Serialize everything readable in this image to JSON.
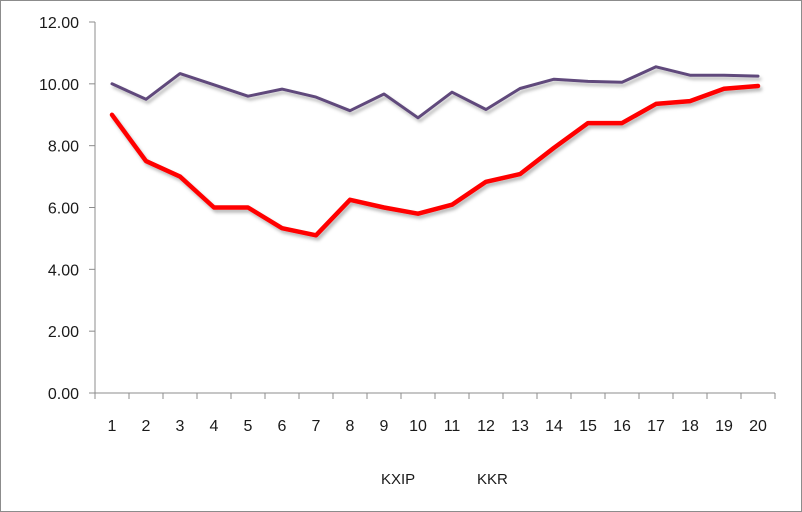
{
  "chart_data": {
    "type": "line",
    "title": "",
    "xlabel": "",
    "ylabel": "",
    "categories": [
      "1",
      "2",
      "3",
      "4",
      "5",
      "6",
      "7",
      "8",
      "9",
      "10",
      "11",
      "12",
      "13",
      "14",
      "15",
      "16",
      "17",
      "18",
      "19",
      "20"
    ],
    "ylim": [
      0,
      12
    ],
    "yticks": [
      "0.00",
      "2.00",
      "4.00",
      "6.00",
      "8.00",
      "10.00",
      "12.00"
    ],
    "grid": false,
    "legend_position": "bottom",
    "series": [
      {
        "name": "KXIP",
        "color": "#ff0000",
        "values": [
          9.0,
          7.5,
          7.0,
          6.0,
          6.0,
          5.33,
          5.1,
          6.25,
          6.0,
          5.8,
          6.09,
          6.83,
          7.08,
          7.93,
          8.73,
          8.73,
          9.35,
          9.44,
          9.84,
          9.93
        ]
      },
      {
        "name": "KKR",
        "color": "#604a7b",
        "values": [
          10.0,
          9.5,
          10.33,
          9.97,
          9.6,
          9.83,
          9.57,
          9.13,
          9.67,
          8.9,
          9.73,
          9.17,
          9.85,
          10.15,
          10.08,
          10.05,
          10.55,
          10.28,
          10.28,
          10.25
        ]
      }
    ]
  }
}
